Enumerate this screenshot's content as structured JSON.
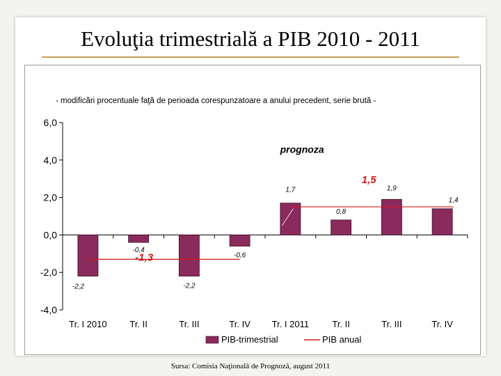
{
  "slide": {
    "title": "Evoluţia trimestrială a PIB 2010 - 2011",
    "source": "Sursa: Comisia Naţională de Prognoză, august 2011"
  },
  "chart_data": {
    "type": "bar",
    "title": "",
    "subtitle": "- modificări procentuale  faţă de perioada corespunzatoare a anului precedent, serie brută -",
    "categories": [
      "Tr. I 2010",
      "Tr. II",
      "Tr. III",
      "Tr. IV",
      "Tr. I 2011",
      "Tr. II",
      "Tr. III",
      "Tr. IV"
    ],
    "ylim": [
      -4,
      6
    ],
    "yticks": [
      -4,
      -2,
      0,
      2,
      4,
      6
    ],
    "ytick_labels": [
      "-4,0",
      "-2,0",
      "0,0",
      "2,0",
      "4,0",
      "6,0"
    ],
    "series": [
      {
        "name": "PIB-trimestrial",
        "type": "bar",
        "color": "#8b2a5d",
        "values": [
          -2.2,
          -0.4,
          -2.2,
          -0.6,
          1.7,
          0.8,
          1.9,
          1.4
        ],
        "labels": [
          "-2,2",
          "-0,4",
          "-2,2",
          "-0,6",
          "1,7",
          "0,8",
          "1,9",
          "1,4"
        ]
      },
      {
        "name": "PIB anual",
        "type": "line",
        "color": "#d11a1a",
        "segments": [
          {
            "from": 0,
            "to": 3,
            "value": -1.3,
            "label": "-1,3"
          },
          {
            "from": 4,
            "to": 7,
            "value": 1.5,
            "label": "1,5"
          }
        ]
      }
    ],
    "annotations": [
      {
        "text": "prognoza",
        "x_category": 5,
        "y": 4.5
      }
    ],
    "legend": "bottom"
  }
}
